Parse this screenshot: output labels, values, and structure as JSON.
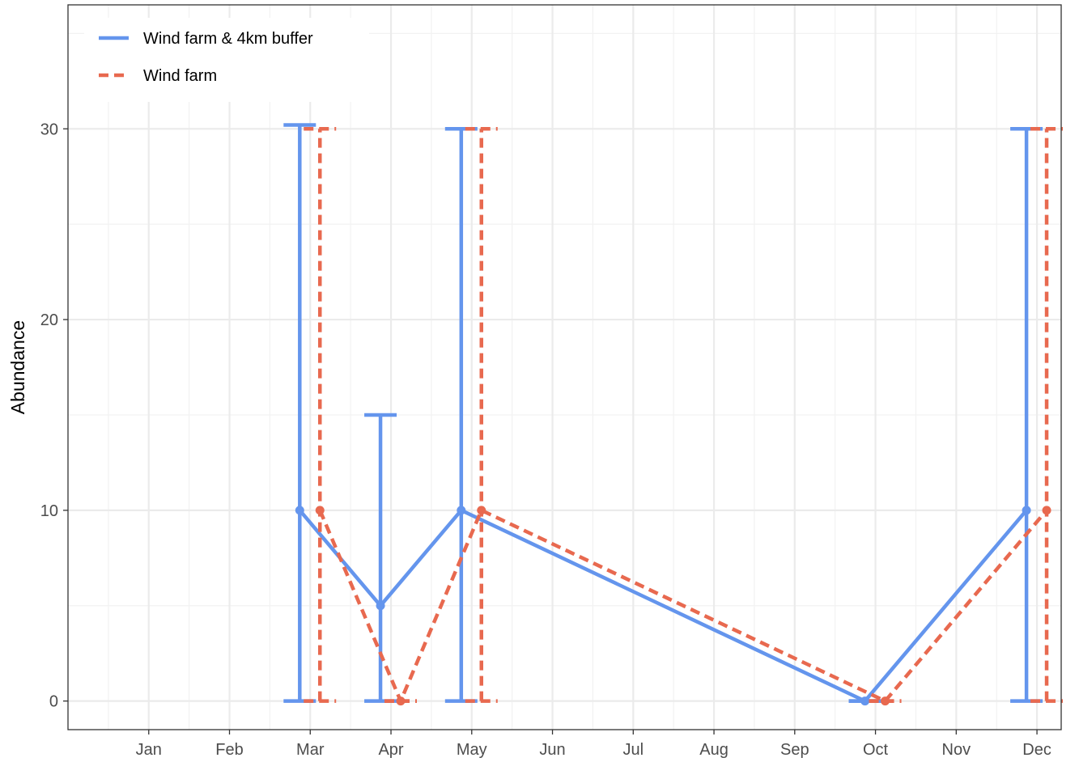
{
  "chart_data": {
    "type": "line",
    "title": "",
    "xlabel": "",
    "ylabel": "Abundance",
    "x_ticks": [
      "Jan",
      "Feb",
      "Mar",
      "Apr",
      "May",
      "Jun",
      "Jul",
      "Aug",
      "Sep",
      "Oct",
      "Nov",
      "Dec"
    ],
    "y_ticks": [
      0,
      10,
      20,
      30
    ],
    "xlim": [
      0.0,
      12.3
    ],
    "ylim": [
      -1.5,
      36.5
    ],
    "grid": true,
    "legend_position": "top-left",
    "series": [
      {
        "name": "Wind farm & 4km buffer",
        "color": "#6495ED",
        "dash": "solid",
        "points": [
          {
            "x": 2.87,
            "y": 10,
            "lo": 0,
            "hi": 30.2
          },
          {
            "x": 3.87,
            "y": 5,
            "lo": 0,
            "hi": 15
          },
          {
            "x": 4.87,
            "y": 10,
            "lo": 0,
            "hi": 30
          },
          {
            "x": 9.87,
            "y": 0,
            "lo": 0,
            "hi": 0
          },
          {
            "x": 11.87,
            "y": 10,
            "lo": 0,
            "hi": 30
          }
        ]
      },
      {
        "name": "Wind farm",
        "color": "#E8694F",
        "dash": "dashed",
        "points": [
          {
            "x": 3.12,
            "y": 10,
            "lo": 0,
            "hi": 30
          },
          {
            "x": 4.12,
            "y": 0,
            "lo": 0,
            "hi": 0
          },
          {
            "x": 5.12,
            "y": 10,
            "lo": 0,
            "hi": 30
          },
          {
            "x": 10.12,
            "y": 0,
            "lo": 0,
            "hi": 0
          },
          {
            "x": 12.12,
            "y": 10,
            "lo": 0,
            "hi": 30
          }
        ]
      }
    ]
  }
}
